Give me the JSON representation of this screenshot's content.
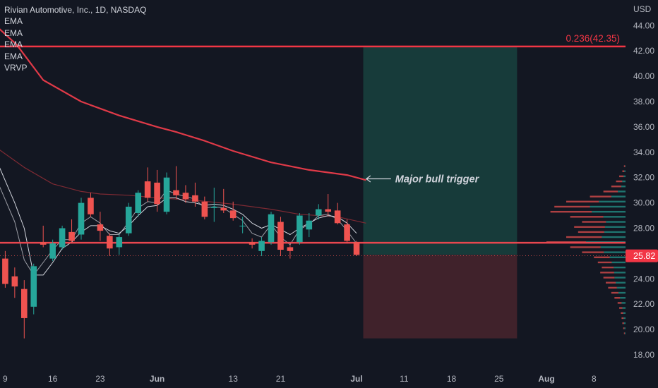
{
  "legend": {
    "title": "Rivian Automotive, Inc., 1D, NASDAQ",
    "indicators": [
      "EMA",
      "EMA",
      "EMA",
      "EMA",
      "VRVP"
    ]
  },
  "colors": {
    "background": "#131722",
    "up": "#26a69a",
    "down": "#ef5350",
    "fib_line": "#f23645",
    "ema_long": "#e03a48",
    "ema_mid": "#7e2a33",
    "ema_short": "#d1d4dc",
    "profit_zone": "#173b3a",
    "loss_zone": "#40222b",
    "price_label_bg": "#f23645"
  },
  "chart_data": {
    "type": "candlestick",
    "currency": "USD",
    "ylim": [
      18,
      45
    ],
    "y_ticks": [
      "44.00",
      "42.00",
      "40.00",
      "38.00",
      "36.00",
      "34.00",
      "32.00",
      "30.00",
      "28.00",
      "26.00",
      "24.00",
      "22.00",
      "20.00",
      "18.00"
    ],
    "x_ticks": [
      {
        "label": "9",
        "i": 0
      },
      {
        "label": "16",
        "i": 5
      },
      {
        "label": "23",
        "i": 10
      },
      {
        "label": "Jun",
        "i": 16,
        "bold": true
      },
      {
        "label": "13",
        "i": 24
      },
      {
        "label": "21",
        "i": 29
      },
      {
        "label": "Jul",
        "i": 37,
        "bold": true
      },
      {
        "label": "11",
        "i": 42
      },
      {
        "label": "18",
        "i": 47
      },
      {
        "label": "25",
        "i": 52
      },
      {
        "label": "Aug",
        "i": 57,
        "bold": true
      },
      {
        "label": "8",
        "i": 62
      }
    ],
    "candles": [
      {
        "o": 25.6,
        "h": 26.2,
        "l": 23.3,
        "c": 23.6
      },
      {
        "o": 24.2,
        "h": 24.9,
        "l": 22.5,
        "c": 23.4
      },
      {
        "o": 23.2,
        "h": 23.9,
        "l": 19.3,
        "c": 20.9
      },
      {
        "o": 21.8,
        "h": 25.2,
        "l": 21.2,
        "c": 25.0
      },
      {
        "o": 26.9,
        "h": 28.2,
        "l": 26.5,
        "c": 26.7
      },
      {
        "o": 25.6,
        "h": 27.1,
        "l": 25.4,
        "c": 26.8
      },
      {
        "o": 26.5,
        "h": 28.2,
        "l": 26.3,
        "c": 28.0
      },
      {
        "o": 27.7,
        "h": 28.7,
        "l": 26.8,
        "c": 27.0
      },
      {
        "o": 27.5,
        "h": 30.4,
        "l": 27.1,
        "c": 30.0
      },
      {
        "o": 30.4,
        "h": 30.8,
        "l": 28.9,
        "c": 29.1
      },
      {
        "o": 28.3,
        "h": 29.3,
        "l": 27.0,
        "c": 27.8
      },
      {
        "o": 27.4,
        "h": 27.6,
        "l": 25.8,
        "c": 26.4
      },
      {
        "o": 26.5,
        "h": 27.5,
        "l": 25.9,
        "c": 27.3
      },
      {
        "o": 27.6,
        "h": 30.0,
        "l": 27.4,
        "c": 29.7
      },
      {
        "o": 29.2,
        "h": 31.0,
        "l": 28.9,
        "c": 30.8
      },
      {
        "o": 31.7,
        "h": 32.8,
        "l": 30.1,
        "c": 30.4
      },
      {
        "o": 31.6,
        "h": 32.6,
        "l": 29.3,
        "c": 29.9
      },
      {
        "o": 29.3,
        "h": 32.4,
        "l": 29.1,
        "c": 32.0
      },
      {
        "o": 31.0,
        "h": 32.9,
        "l": 30.3,
        "c": 30.6
      },
      {
        "o": 30.8,
        "h": 31.4,
        "l": 30.0,
        "c": 30.3
      },
      {
        "o": 30.6,
        "h": 31.6,
        "l": 29.7,
        "c": 30.1
      },
      {
        "o": 30.1,
        "h": 30.5,
        "l": 28.7,
        "c": 28.9
      },
      {
        "o": 29.6,
        "h": 31.2,
        "l": 28.5,
        "c": 29.7
      },
      {
        "o": 29.6,
        "h": 31.1,
        "l": 29.2,
        "c": 29.4
      },
      {
        "o": 29.4,
        "h": 30.1,
        "l": 28.6,
        "c": 28.8
      },
      {
        "o": 28.2,
        "h": 28.9,
        "l": 27.6,
        "c": 28.2
      },
      {
        "o": 26.9,
        "h": 27.2,
        "l": 26.4,
        "c": 26.7
      },
      {
        "o": 26.2,
        "h": 27.3,
        "l": 25.8,
        "c": 27.0
      },
      {
        "o": 26.9,
        "h": 29.3,
        "l": 26.7,
        "c": 29.1
      },
      {
        "o": 28.5,
        "h": 28.9,
        "l": 25.8,
        "c": 26.3
      },
      {
        "o": 26.5,
        "h": 26.7,
        "l": 25.6,
        "c": 26.2
      },
      {
        "o": 26.9,
        "h": 29.2,
        "l": 26.7,
        "c": 29.0
      },
      {
        "o": 27.9,
        "h": 29.2,
        "l": 27.3,
        "c": 28.6
      },
      {
        "o": 29.0,
        "h": 29.9,
        "l": 28.7,
        "c": 29.5
      },
      {
        "o": 29.5,
        "h": 30.7,
        "l": 29.0,
        "c": 29.3
      },
      {
        "o": 29.4,
        "h": 30.0,
        "l": 28.3,
        "c": 28.4
      },
      {
        "o": 28.3,
        "h": 28.7,
        "l": 26.8,
        "c": 27.0
      },
      {
        "o": 26.9,
        "h": 27.0,
        "l": 25.8,
        "c": 25.9
      }
    ],
    "ema_long": [
      [
        -1,
        44.0
      ],
      [
        1.2,
        42.5
      ],
      [
        4,
        39.7
      ],
      [
        8,
        38.0
      ],
      [
        12,
        36.9
      ],
      [
        16,
        36.0
      ],
      [
        18,
        35.6
      ],
      [
        21,
        34.9
      ],
      [
        24,
        34.1
      ],
      [
        28,
        33.2
      ],
      [
        32,
        32.6
      ],
      [
        36,
        32.2
      ],
      [
        38,
        31.8
      ]
    ],
    "ema_mid": [
      [
        -1,
        34.4
      ],
      [
        2,
        32.8
      ],
      [
        5,
        31.5
      ],
      [
        8,
        30.9
      ],
      [
        10,
        30.7
      ],
      [
        13,
        30.6
      ],
      [
        16,
        30.4
      ],
      [
        20,
        30.2
      ],
      [
        24,
        29.9
      ],
      [
        28,
        29.5
      ],
      [
        31,
        29.1
      ],
      [
        35,
        28.9
      ],
      [
        38,
        28.4
      ]
    ],
    "ema_short": [
      [
        -1,
        33.5
      ],
      [
        1,
        30.0
      ],
      [
        2,
        28.0
      ],
      [
        3,
        24.3
      ],
      [
        4,
        24.3
      ],
      [
        5,
        25.3
      ],
      [
        6,
        26.4
      ],
      [
        7,
        26.9
      ],
      [
        8,
        27.7
      ],
      [
        9,
        28.2
      ],
      [
        10,
        28.2
      ],
      [
        11,
        27.8
      ],
      [
        12,
        27.6
      ],
      [
        13,
        28.2
      ],
      [
        14,
        29.0
      ],
      [
        15,
        29.7
      ],
      [
        16,
        29.8
      ],
      [
        17,
        30.4
      ],
      [
        18,
        30.4
      ],
      [
        19,
        30.1
      ],
      [
        20,
        30.0
      ],
      [
        21,
        29.8
      ],
      [
        22,
        29.9
      ],
      [
        23,
        29.8
      ],
      [
        24,
        29.5
      ],
      [
        25,
        29.1
      ],
      [
        26,
        28.4
      ],
      [
        27,
        28.0
      ],
      [
        28,
        28.3
      ],
      [
        29,
        27.9
      ],
      [
        30,
        27.5
      ],
      [
        31,
        28.0
      ],
      [
        32,
        28.4
      ],
      [
        33,
        28.8
      ],
      [
        34,
        29.0
      ],
      [
        35,
        28.9
      ],
      [
        36,
        28.4
      ],
      [
        37,
        27.6
      ]
    ],
    "ema_fast": [
      [
        -1,
        32.0
      ],
      [
        1,
        28.5
      ],
      [
        2,
        25.5
      ],
      [
        3,
        24.3
      ],
      [
        4,
        25.3
      ],
      [
        5,
        26.3
      ],
      [
        6,
        27.1
      ],
      [
        7,
        27.1
      ],
      [
        8,
        28.4
      ],
      [
        9,
        28.9
      ],
      [
        10,
        28.4
      ],
      [
        11,
        27.5
      ],
      [
        12,
        27.5
      ],
      [
        13,
        28.5
      ],
      [
        14,
        29.6
      ],
      [
        15,
        30.1
      ],
      [
        16,
        30.0
      ],
      [
        17,
        31.0
      ],
      [
        18,
        30.7
      ],
      [
        19,
        30.5
      ],
      [
        20,
        30.3
      ],
      [
        21,
        29.6
      ],
      [
        22,
        29.7
      ],
      [
        23,
        29.6
      ],
      [
        24,
        29.1
      ],
      [
        25,
        28.6
      ],
      [
        26,
        27.6
      ],
      [
        27,
        27.3
      ],
      [
        28,
        28.3
      ],
      [
        29,
        27.3
      ],
      [
        30,
        26.7
      ],
      [
        31,
        27.9
      ],
      [
        32,
        28.3
      ],
      [
        33,
        29.0
      ],
      [
        34,
        29.1
      ],
      [
        35,
        28.7
      ],
      [
        36,
        27.8
      ],
      [
        37,
        26.8
      ]
    ],
    "levels": {
      "fib": {
        "price": 42.35,
        "label": "0.236(42.35)"
      },
      "support": 26.85,
      "last_price": {
        "price": 25.82,
        "label": "25.82"
      }
    },
    "position": {
      "start_i": 37.7,
      "end_i": 53.9,
      "entry": 25.9,
      "target": 42.35,
      "stop": 19.3
    },
    "annotation": {
      "text": "Major bull trigger",
      "at_i": 37.8,
      "price": 31.9
    },
    "volume_profile": [
      {
        "p": 32.9,
        "v": 0.02,
        "up": 0.3
      },
      {
        "p": 32.5,
        "v": 0.04,
        "up": 0.4
      },
      {
        "p": 32.1,
        "v": 0.08,
        "up": 0.3
      },
      {
        "p": 31.7,
        "v": 0.12,
        "up": 0.35
      },
      {
        "p": 31.3,
        "v": 0.18,
        "up": 0.3
      },
      {
        "p": 30.9,
        "v": 0.28,
        "up": 0.35
      },
      {
        "p": 30.5,
        "v": 0.45,
        "up": 0.4
      },
      {
        "p": 30.1,
        "v": 0.75,
        "up": 0.45
      },
      {
        "p": 29.7,
        "v": 0.9,
        "up": 0.5
      },
      {
        "p": 29.3,
        "v": 0.95,
        "up": 0.45
      },
      {
        "p": 28.9,
        "v": 0.7,
        "up": 0.4
      },
      {
        "p": 28.5,
        "v": 0.55,
        "up": 0.45
      },
      {
        "p": 28.1,
        "v": 0.65,
        "up": 0.4
      },
      {
        "p": 27.7,
        "v": 0.6,
        "up": 0.45
      },
      {
        "p": 27.3,
        "v": 0.75,
        "up": 0.4
      },
      {
        "p": 26.9,
        "v": 1.0,
        "up": 0.5
      },
      {
        "p": 26.5,
        "v": 0.7,
        "up": 0.45
      },
      {
        "p": 26.1,
        "v": 0.55,
        "up": 0.5
      },
      {
        "p": 25.7,
        "v": 0.4,
        "up": 0.5
      },
      {
        "p": 25.3,
        "v": 0.35,
        "up": 0.5
      },
      {
        "p": 24.9,
        "v": 0.3,
        "up": 0.5
      },
      {
        "p": 24.5,
        "v": 0.32,
        "up": 0.45
      },
      {
        "p": 24.1,
        "v": 0.28,
        "up": 0.5
      },
      {
        "p": 23.7,
        "v": 0.25,
        "up": 0.5
      },
      {
        "p": 23.3,
        "v": 0.22,
        "up": 0.5
      },
      {
        "p": 22.9,
        "v": 0.18,
        "up": 0.5
      },
      {
        "p": 22.5,
        "v": 0.14,
        "up": 0.5
      },
      {
        "p": 22.1,
        "v": 0.1,
        "up": 0.5
      },
      {
        "p": 21.7,
        "v": 0.08,
        "up": 0.5
      },
      {
        "p": 21.3,
        "v": 0.06,
        "up": 0.5
      },
      {
        "p": 20.9,
        "v": 0.05,
        "up": 0.5
      },
      {
        "p": 20.5,
        "v": 0.04,
        "up": 0.5
      },
      {
        "p": 20.1,
        "v": 0.03,
        "up": 0.5
      },
      {
        "p": 19.7,
        "v": 0.02,
        "up": 0.5
      }
    ]
  }
}
